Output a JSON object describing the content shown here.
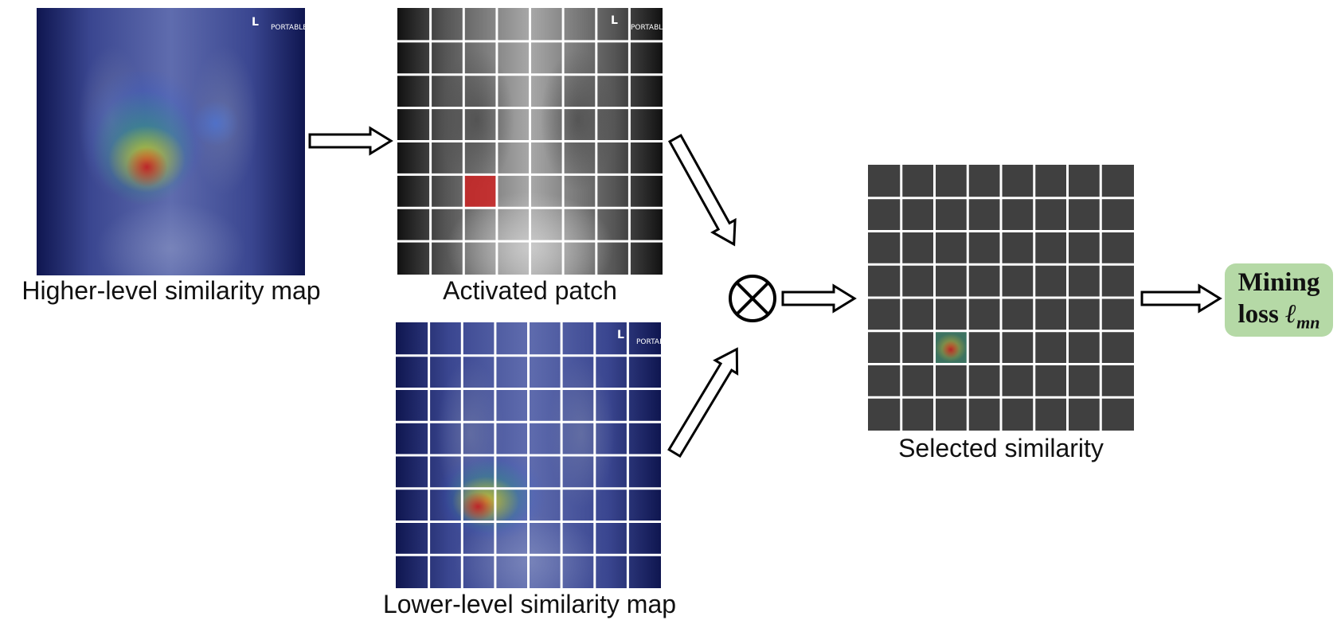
{
  "captions": {
    "higher": "Higher-level similarity map",
    "activated": "Activated patch",
    "lower": "Lower-level similarity map",
    "selected": "Selected similarity"
  },
  "xray_tags": {
    "portable": "PORTABLE",
    "side": "L"
  },
  "output": {
    "line1": "Mining",
    "line2_prefix": "loss ",
    "symbol": "ℓ",
    "subscript": "mn"
  },
  "colors": {
    "grid_cell": "#404040",
    "grid_line": "#ffffff",
    "output_box": "#b5d9a6",
    "activated_patch": "#d02020"
  },
  "icons": {
    "operator": "circled-times-icon",
    "arrow": "hollow-arrow-icon"
  }
}
